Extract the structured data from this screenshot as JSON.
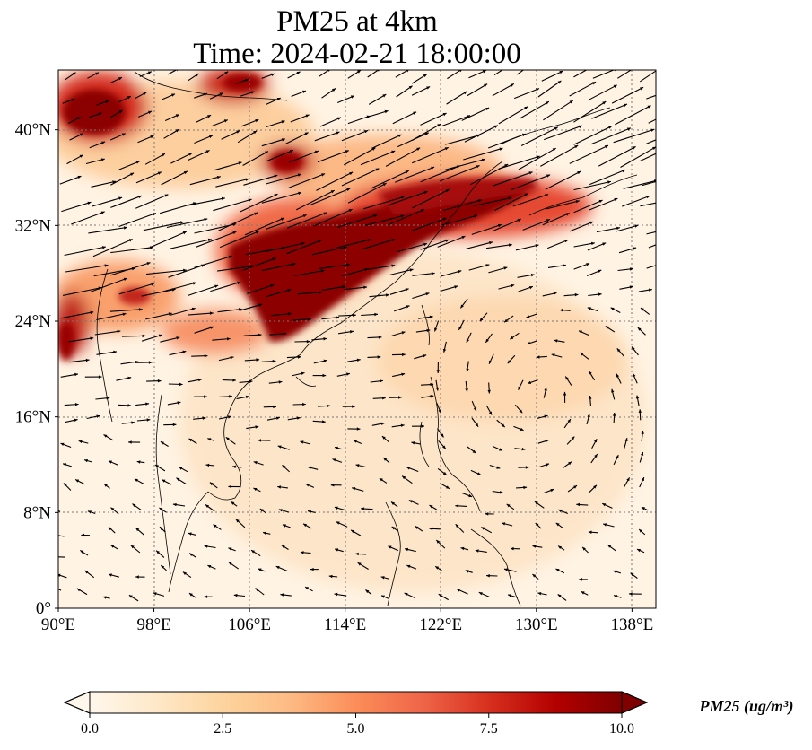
{
  "title": {
    "line1": "PM25 at 4km",
    "line2": "Time: 2024-02-21 18:00:00"
  },
  "map": {
    "projection": "PlateCarree",
    "lon_range": [
      90,
      140
    ],
    "lat_range": [
      0,
      45
    ],
    "gridlines": "dotted",
    "lon_ticks": [
      {
        "value": 90,
        "label": "90°E"
      },
      {
        "value": 98,
        "label": "98°E"
      },
      {
        "value": 106,
        "label": "106°E"
      },
      {
        "value": 114,
        "label": "114°E"
      },
      {
        "value": 122,
        "label": "122°E"
      },
      {
        "value": 130,
        "label": "130°E"
      },
      {
        "value": 138,
        "label": "138°E"
      }
    ],
    "lat_ticks": [
      {
        "value": 0,
        "label": "0°"
      },
      {
        "value": 8,
        "label": "8°N"
      },
      {
        "value": 16,
        "label": "16°N"
      },
      {
        "value": 24,
        "label": "24°N"
      },
      {
        "value": 32,
        "label": "32°N"
      },
      {
        "value": 40,
        "label": "40°N"
      }
    ],
    "field_variable": "PM25",
    "overlay": "wind vectors (quiver)"
  },
  "colorbar": {
    "label": "PM25 (ug/m³)",
    "min": 0.0,
    "max": 10.0,
    "extend": "both",
    "colormap": [
      "#fff7ec",
      "#fee8c8",
      "#fdd49e",
      "#fdbb84",
      "#fc8d59",
      "#ef6548",
      "#d7301f",
      "#b30000",
      "#7f0000"
    ],
    "ticks": [
      {
        "value": 0.0,
        "label": "0.0"
      },
      {
        "value": 2.5,
        "label": "2.5"
      },
      {
        "value": 5.0,
        "label": "5.0"
      },
      {
        "value": 7.5,
        "label": "7.5"
      },
      {
        "value": 10.0,
        "label": "10.0"
      }
    ]
  }
}
